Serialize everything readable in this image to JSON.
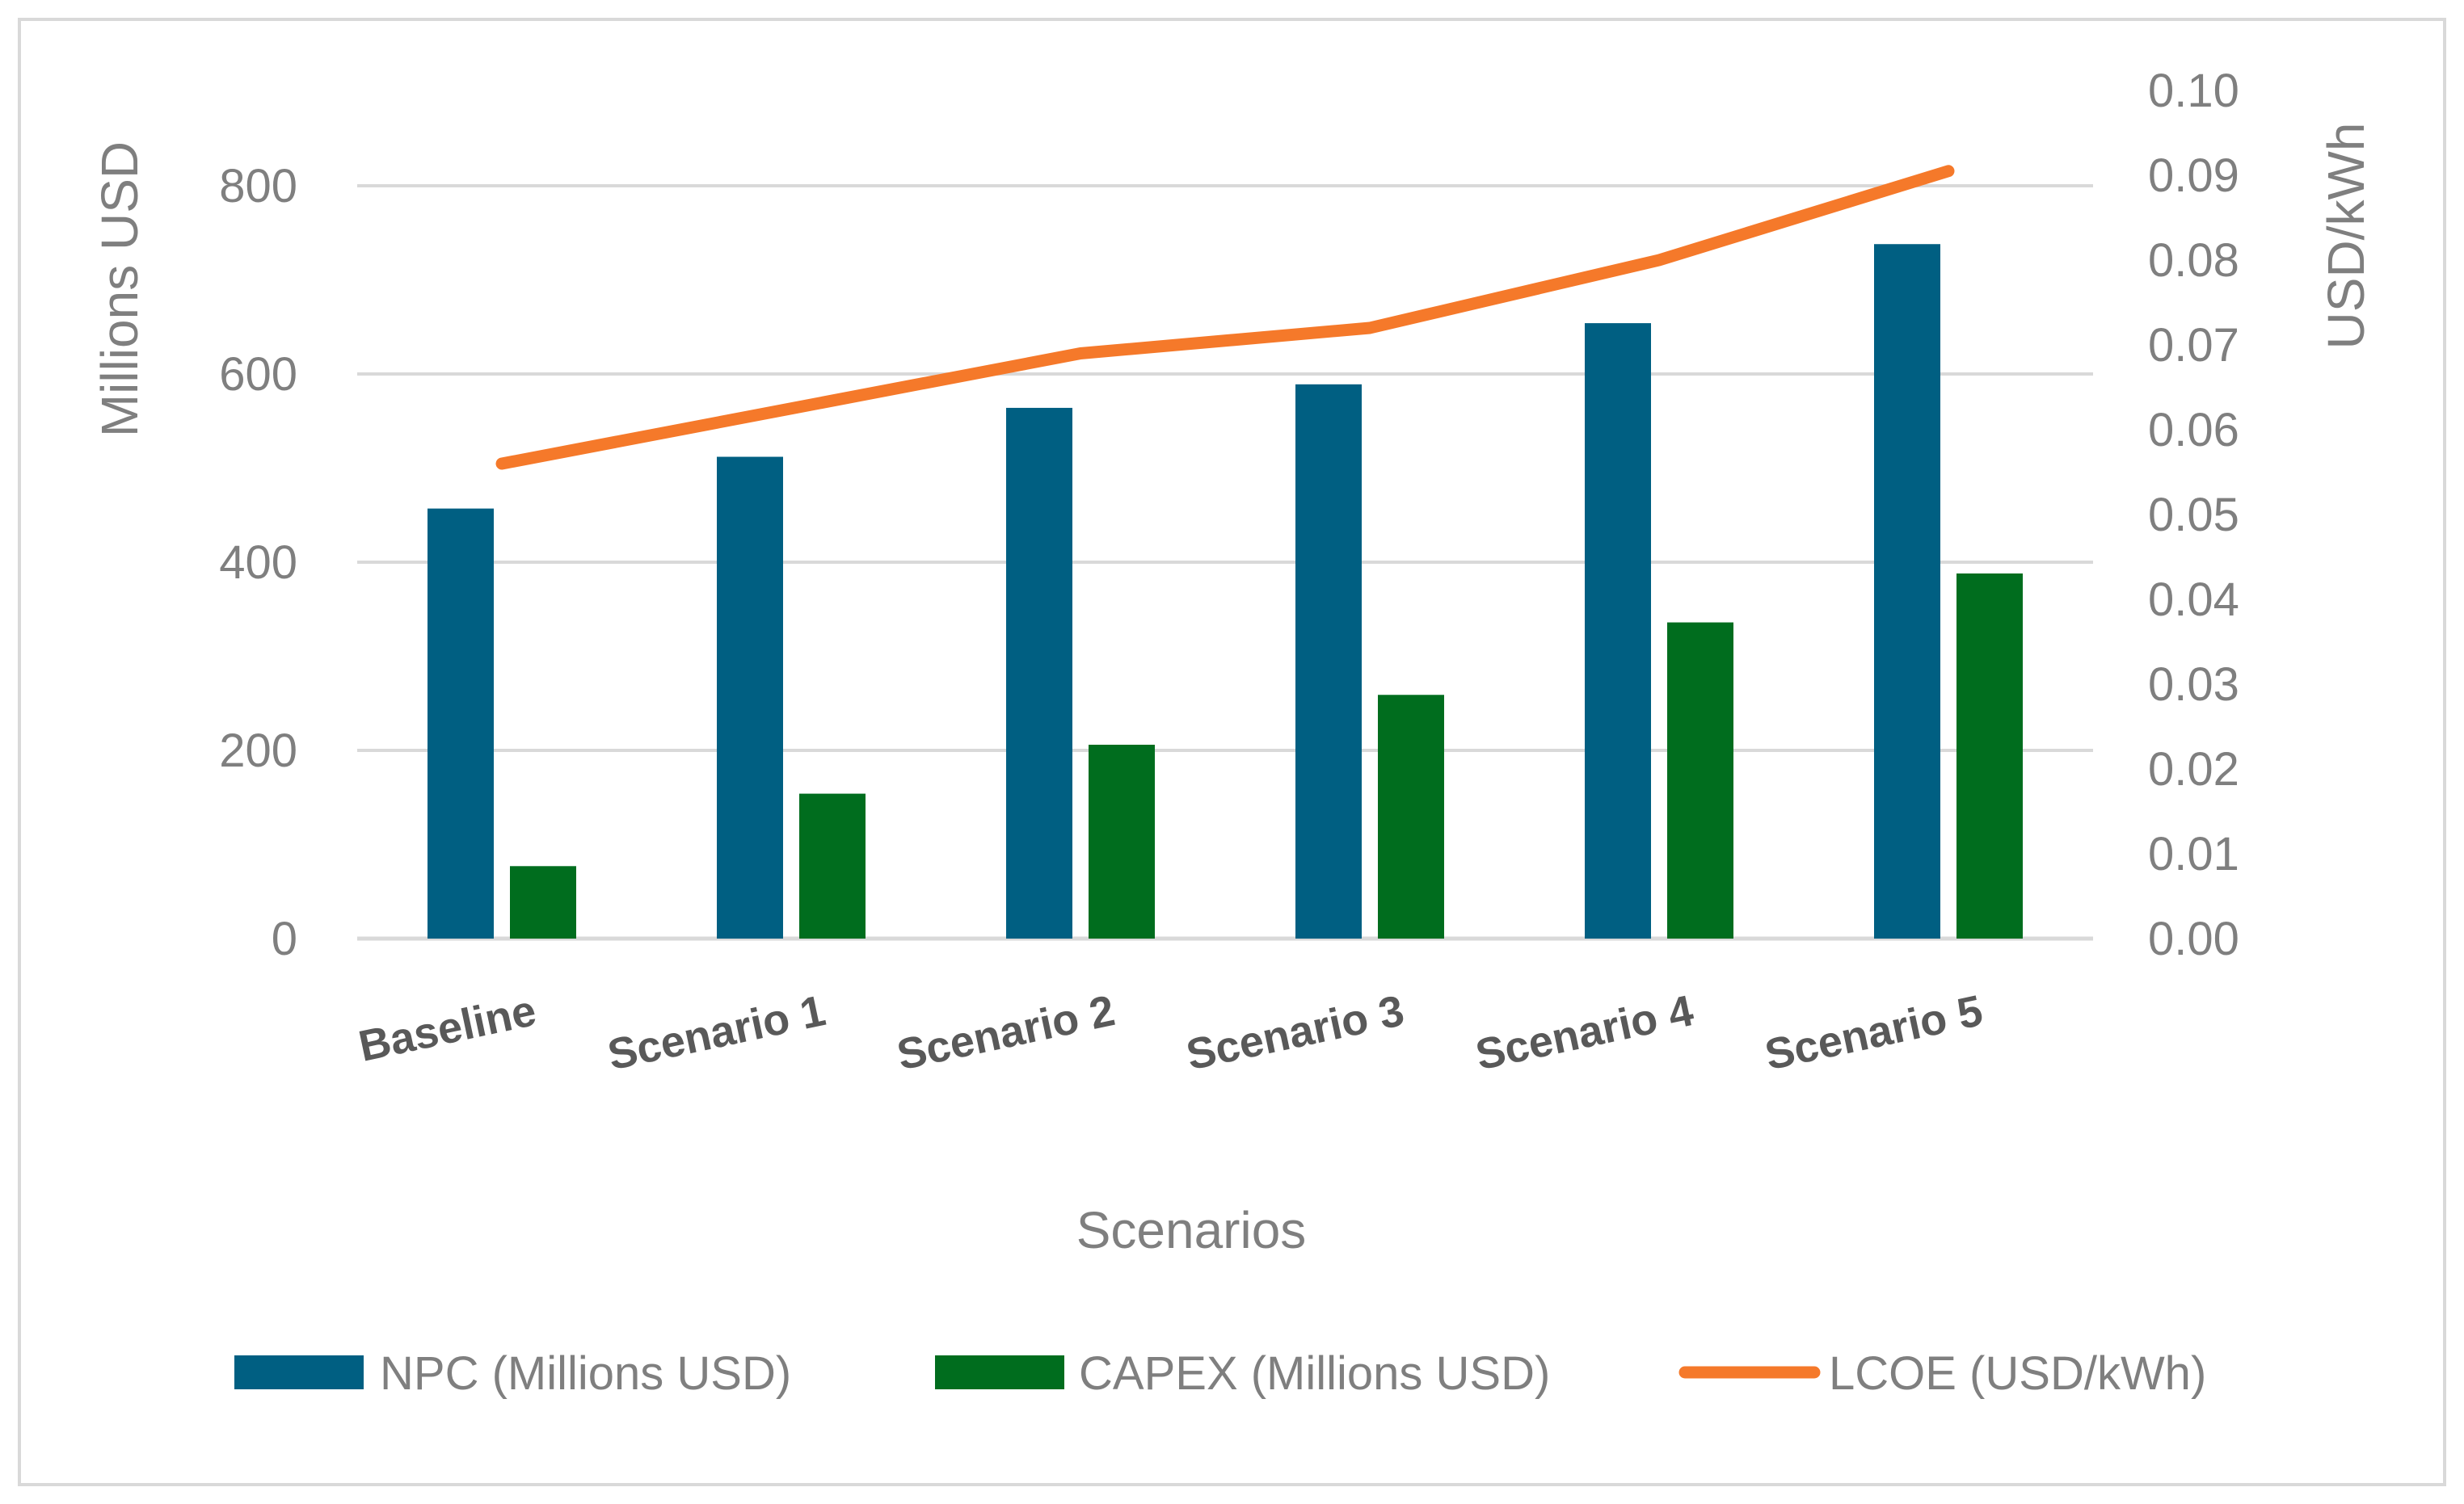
{
  "chart_data": {
    "type": "bar",
    "combo": "bar + line (secondary axis)",
    "categories": [
      "Baseline",
      "Scenario 1",
      "Scenario 2",
      "Scenario 3",
      "Scenario 4",
      "Scenario 5"
    ],
    "series": [
      {
        "name": "NPC (Millions USD)",
        "type": "bar",
        "axis": "left",
        "color": "#005f82",
        "values": [
          457,
          512,
          564,
          589,
          654,
          738
        ]
      },
      {
        "name": "CAPEX (Millions USD)",
        "type": "bar",
        "axis": "left",
        "color": "#006d1e",
        "values": [
          77,
          154,
          206,
          259,
          336,
          388
        ]
      },
      {
        "name": "LCOE (USD/kWh)",
        "type": "line",
        "axis": "right",
        "color": "#f5792a",
        "values": [
          0.056,
          0.0625,
          0.069,
          0.072,
          0.08,
          0.0905
        ]
      }
    ],
    "xlabel": "Scenarios",
    "ylabel": "Millions USD",
    "y2label": "USD/kWh",
    "ylim": [
      0,
      900
    ],
    "y2lim": [
      0,
      0.1
    ],
    "yticks": [
      "0",
      "200",
      "400",
      "600",
      "800"
    ],
    "y2ticks": [
      "0.00",
      "0.01",
      "0.02",
      "0.03",
      "0.04",
      "0.05",
      "0.06",
      "0.07",
      "0.08",
      "0.09",
      "0.10"
    ],
    "grid": true,
    "legend_position": "bottom"
  }
}
